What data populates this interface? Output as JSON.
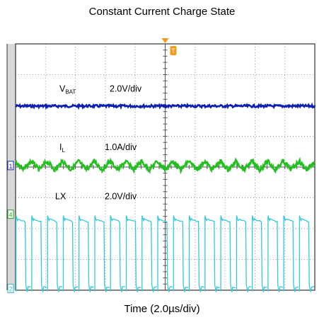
{
  "title": "Constant Current Charge State",
  "chart_data": {
    "type": "line",
    "title": "Constant Current Charge State",
    "xlabel": "Time (2.0µs/div)",
    "grid": true,
    "divisions": {
      "x": 10,
      "y": 8
    },
    "channels": [
      {
        "name": "V",
        "name_sub": "BAT",
        "scale": "2.0V/div",
        "color": "#0b1fb3",
        "marker": "",
        "level_div": 5.98,
        "form": "flat",
        "noise_div": 0.04
      },
      {
        "name": "I",
        "name_sub": "L",
        "scale": "1.0A/div",
        "color": "#22c01e",
        "marker": "1",
        "level_div": 4.05,
        "form": "triangle",
        "ripple_div": 0.28,
        "cycles": 19,
        "noise_div": 0.07
      },
      {
        "name": "LX",
        "name_sub": "",
        "scale": "2.0V/div",
        "color": "#34c8de",
        "marker": "4",
        "level_div": 2.33,
        "low_div": 0.1,
        "form": "square",
        "cycles": 19,
        "duty": 0.62,
        "marker_low": "2"
      }
    ],
    "trigger_marker": "T"
  }
}
